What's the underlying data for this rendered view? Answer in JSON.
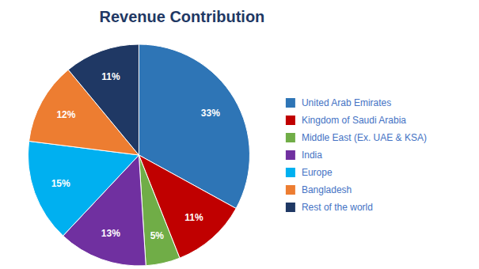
{
  "chart_data": {
    "type": "pie",
    "title": "Revenue Contribution",
    "categories": [
      "United Arab Emirates",
      "Kingdom of Saudi Arabia",
      "Middle East (Ex. UAE & KSA)",
      "India",
      "Europe",
      "Bangladesh",
      "Rest of the world"
    ],
    "values": [
      33,
      11,
      5,
      13,
      15,
      12,
      11
    ],
    "value_labels": [
      "33%",
      "11%",
      "5%",
      "13%",
      "15%",
      "12%",
      "11%"
    ],
    "colors": [
      "#2E75B6",
      "#C00000",
      "#70AD47",
      "#7030A0",
      "#00B0F0",
      "#ED7D31",
      "#1F3864"
    ],
    "data_labels": true,
    "legend": "right"
  }
}
